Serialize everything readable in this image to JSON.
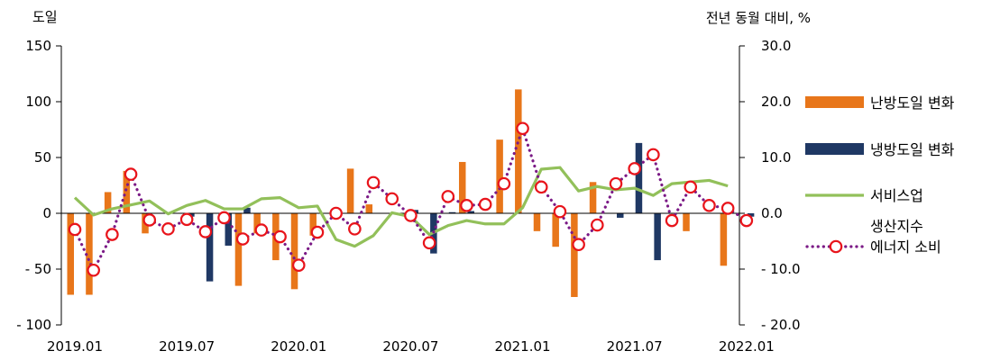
{
  "chart_data": {
    "type": "bar",
    "left_axis_label": "도일",
    "right_axis_label": "전년 동월 대비, %",
    "ylim_left": [
      -100,
      150
    ],
    "ylim_right": [
      -20,
      30
    ],
    "left_ticks": [
      -100,
      -50,
      0,
      50,
      100,
      150
    ],
    "left_tick_labels": [
      "- 100",
      "- 50",
      "0",
      "50",
      "100",
      "150"
    ],
    "right_ticks": [
      -20,
      -10,
      0,
      10,
      20,
      30
    ],
    "right_tick_labels": [
      "- 20.0",
      "- 10.0",
      "0.0",
      "10.0",
      "20.0",
      "30.0"
    ],
    "months": [
      "2019.01",
      "2019.02",
      "2019.03",
      "2019.04",
      "2019.05",
      "2019.06",
      "2019.07",
      "2019.08",
      "2019.09",
      "2019.10",
      "2019.11",
      "2019.12",
      "2020.01",
      "2020.02",
      "2020.03",
      "2020.04",
      "2020.05",
      "2020.06",
      "2020.07",
      "2020.08",
      "2020.09",
      "2020.10",
      "2020.11",
      "2020.12",
      "2021.01",
      "2021.02",
      "2021.03",
      "2021.04",
      "2021.05",
      "2021.06",
      "2021.07",
      "2021.08",
      "2021.09",
      "2021.10",
      "2021.11",
      "2021.12",
      "2022.01"
    ],
    "x_tick_labels": [
      {
        "index": 0,
        "label": "2019.01"
      },
      {
        "index": 6,
        "label": "2019.07"
      },
      {
        "index": 12,
        "label": "2020.01"
      },
      {
        "index": 18,
        "label": "2020.07"
      },
      {
        "index": 24,
        "label": "2021.01"
      },
      {
        "index": 30,
        "label": "2021.07"
      },
      {
        "index": 36,
        "label": "2022.01"
      }
    ],
    "series": [
      {
        "name": "난방도일 변화",
        "axis": "left",
        "kind": "bar",
        "color": "#E8761A",
        "values": [
          -73,
          -73,
          19,
          38,
          -18,
          0,
          0,
          0,
          0,
          -65,
          -18,
          -42,
          -68,
          -20,
          0,
          40,
          8,
          0,
          0,
          0,
          0,
          46,
          0,
          66,
          111,
          -16,
          -30,
          -75,
          28,
          0,
          0,
          0,
          0,
          -16,
          0,
          -47,
          0
        ]
      },
      {
        "name": "냉방도일 변화",
        "axis": "left",
        "kind": "bar",
        "color": "#1F3864",
        "values": [
          0,
          0,
          0,
          0,
          0,
          0,
          -3,
          -61,
          -29,
          5,
          0,
          0,
          0,
          0,
          0,
          0,
          0,
          0,
          3,
          -36,
          1,
          2,
          0,
          0,
          0,
          0,
          0,
          0,
          0,
          -4,
          63,
          -42,
          0,
          0,
          0,
          0,
          -3
        ]
      },
      {
        "name": "서비스업 생산지수",
        "axis": "right",
        "kind": "line",
        "color": "#92C05A",
        "values": [
          2.8,
          -0.3,
          0.8,
          1.5,
          2.2,
          -0.1,
          1.4,
          2.3,
          0.8,
          0.8,
          2.6,
          2.8,
          1.0,
          1.3,
          -4.7,
          -5.9,
          -4.0,
          0.1,
          -0.6,
          -3.8,
          -2.2,
          -1.3,
          -1.9,
          -1.9,
          1.0,
          7.9,
          8.2,
          4.0,
          4.8,
          4.2,
          4.5,
          3.2,
          5.3,
          5.6,
          5.9,
          4.9,
          null
        ]
      },
      {
        "name": "에너지 소비",
        "axis": "right",
        "kind": "dotted-line-markers",
        "color": "#7B1A86",
        "values": [
          -2.9,
          -10.2,
          -3.8,
          7.0,
          -1.2,
          -2.8,
          -1.1,
          -3.3,
          -0.8,
          -4.6,
          -3.0,
          -4.2,
          -9.3,
          -3.4,
          0.0,
          -2.8,
          5.5,
          2.6,
          -0.4,
          -5.3,
          3.0,
          1.4,
          1.6,
          5.3,
          15.2,
          4.7,
          0.3,
          -5.6,
          -2.1,
          5.3,
          8.0,
          10.5,
          -1.3,
          4.7,
          1.4,
          0.9,
          -1.3
        ]
      }
    ]
  },
  "legend": [
    {
      "name": "난방도일 변화",
      "label_lines": [
        "난방도일 변화"
      ],
      "symbol": "bar",
      "color": "#E8761A"
    },
    {
      "name": "냉방도일 변화",
      "label_lines": [
        "냉방도일 변화"
      ],
      "symbol": "bar",
      "color": "#1F3864"
    },
    {
      "name": "서비스업 생산지수",
      "label_lines": [
        "서비스업",
        "생산지수"
      ],
      "symbol": "line",
      "color": "#92C05A"
    },
    {
      "name": "에너지 소비",
      "label_lines": [
        "에너지 소비"
      ],
      "symbol": "dotted-marker",
      "color": "#7B1A86"
    }
  ],
  "colors": {
    "axis": "#000000",
    "marker_stroke": "#E8141B",
    "marker_fill": "#FFFFFF"
  }
}
